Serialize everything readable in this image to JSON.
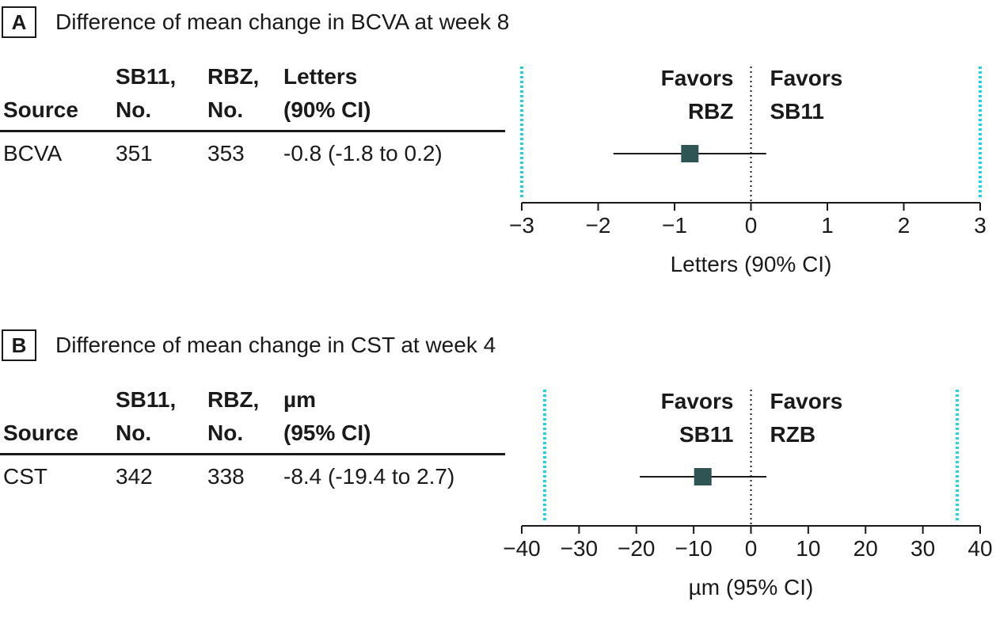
{
  "panels": [
    {
      "letter": "A",
      "title": "Difference of mean change in BCVA at week 8",
      "header": {
        "source": "Source",
        "sb11": [
          "SB11,",
          "No."
        ],
        "rbz": [
          "RBZ,",
          "No."
        ],
        "estimate": [
          "Letters",
          "(90% CI)"
        ]
      },
      "row": {
        "source": "BCVA",
        "sb11": "351",
        "rbz": "353",
        "estimate": "-0.8 (-1.8 to 0.2)"
      },
      "favors_left": [
        "Favors",
        "RBZ"
      ],
      "favors_right": [
        "Favors",
        "SB11"
      ]
    },
    {
      "letter": "B",
      "title": "Difference of mean change in CST at week 4",
      "header": {
        "source": "Source",
        "sb11": [
          "SB11,",
          "No."
        ],
        "rbz": [
          "RBZ,",
          "No."
        ],
        "estimate": [
          "µm",
          "(95% CI)"
        ]
      },
      "row": {
        "source": "CST",
        "sb11": "342",
        "rbz": "338",
        "estimate": "-8.4 (-19.4 to 2.7)"
      },
      "favors_left": [
        "Favors",
        "SB11"
      ],
      "favors_right": [
        "Favors",
        "RZB"
      ]
    }
  ],
  "chart_data": [
    {
      "type": "forest",
      "xlabel": "Letters (90% CI)",
      "xlim": [
        -3,
        3
      ],
      "ticks": [
        -3,
        -2,
        -1,
        0,
        1,
        2,
        3
      ],
      "tick_labels": [
        "−3",
        "−2",
        "−1",
        "0",
        "1",
        "2",
        "3"
      ],
      "reference_line": 0,
      "margin_lines": [
        -3,
        3
      ],
      "points": [
        {
          "label": "BCVA",
          "estimate": -0.8,
          "ci_low": -1.8,
          "ci_high": 0.2
        }
      ],
      "colors": {
        "marker": "#2e5554",
        "margin": "#1fd1e6",
        "axis": "#1a1a1a"
      }
    },
    {
      "type": "forest",
      "xlabel": "µm (95% CI)",
      "xlim": [
        -40,
        40
      ],
      "ticks": [
        -40,
        -30,
        -20,
        -10,
        0,
        10,
        20,
        30,
        40
      ],
      "tick_labels": [
        "−40",
        "−30",
        "−20",
        "−10",
        "0",
        "10",
        "20",
        "30",
        "40"
      ],
      "reference_line": 0,
      "margin_lines": [
        -36,
        36
      ],
      "points": [
        {
          "label": "CST",
          "estimate": -8.4,
          "ci_low": -19.4,
          "ci_high": 2.7
        }
      ],
      "colors": {
        "marker": "#2e5554",
        "margin": "#1fd1e6",
        "axis": "#1a1a1a"
      }
    }
  ]
}
